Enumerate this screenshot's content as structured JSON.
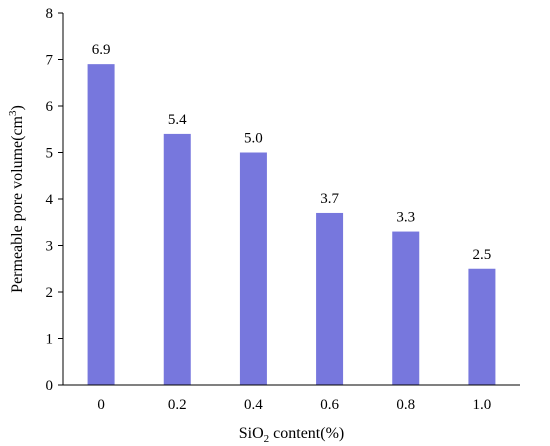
{
  "chart_data": {
    "type": "bar",
    "title": "",
    "categories": [
      "0",
      "0.2",
      "0.4",
      "0.6",
      "0.8",
      "1.0"
    ],
    "values": [
      6.9,
      5.4,
      5.0,
      3.7,
      3.3,
      2.5
    ],
    "data_labels": [
      "6.9",
      "5.4",
      "5.0",
      "3.7",
      "3.3",
      "2.5"
    ],
    "xlabel": {
      "prefix": "SiO",
      "sub": "2",
      "suffix": " content(%)"
    },
    "ylabel": {
      "text": "Permeable pore volume(cm",
      "sup": "3",
      "close": ")"
    },
    "ylim": [
      0,
      8
    ],
    "yticks": [
      "0",
      "1",
      "2",
      "3",
      "4",
      "5",
      "6",
      "7",
      "8"
    ],
    "grid": false,
    "legend": "none",
    "bar_color": "#7777dd"
  }
}
